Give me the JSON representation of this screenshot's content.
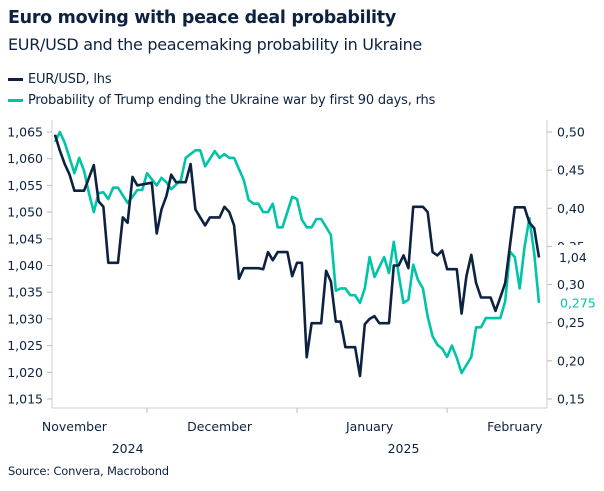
{
  "header": {
    "title": "Euro moving with peace deal probability",
    "subtitle": "EUR/USD and the peacemaking probability in Ukraine"
  },
  "legend": [
    {
      "label": "EUR/USD, lhs",
      "color": "#0d2240"
    },
    {
      "label": "Probability of Trump ending the Ukraine war by first 90 days, rhs",
      "color": "#00c4a7"
    }
  ],
  "source": "Source: Convera, Macrobond",
  "chart_data": {
    "type": "line",
    "title": "Euro moving with peace deal probability",
    "subtitle": "EUR/USD and the peacemaking probability in Ukraine",
    "grid": false,
    "legend_placement": "top-left",
    "x_ticks": [
      {
        "label": "November",
        "date": "2024-11-16"
      },
      {
        "label": "December",
        "date": "2024-12-16"
      },
      {
        "label": "January",
        "date": "2025-01-16"
      },
      {
        "label": "February",
        "date": "2025-02-15"
      }
    ],
    "year_labels": [
      {
        "label": "2024",
        "date": "2024-12-01"
      },
      {
        "label": "2025",
        "date": "2025-02-01"
      }
    ],
    "y_left": {
      "ylim": [
        1.013,
        1.067
      ],
      "ticks": [
        "1,015",
        "1,020",
        "1,025",
        "1,030",
        "1,035",
        "1,040",
        "1,045",
        "1,050",
        "1,055",
        "1,060",
        "1,065"
      ],
      "tick_values": [
        1.015,
        1.02,
        1.025,
        1.03,
        1.035,
        1.04,
        1.045,
        1.05,
        1.055,
        1.06,
        1.065
      ]
    },
    "y_right": {
      "ylim": [
        0.14,
        0.51
      ],
      "ticks": [
        "0,15",
        "0,20",
        "0,25",
        "0,30",
        "0,35",
        "0,40",
        "0,45",
        "0,50"
      ],
      "tick_values": [
        0.15,
        0.2,
        0.25,
        0.3,
        0.35,
        0.4,
        0.45,
        0.5
      ]
    },
    "series": [
      {
        "name": "EUR/USD, lhs",
        "axis": "left",
        "color": "#0d2240",
        "last_label": "1,04",
        "points": [
          [
            "2024-11-12",
            1.0645
          ],
          [
            "2024-11-13",
            1.0615
          ],
          [
            "2024-11-14",
            1.059
          ],
          [
            "2024-11-15",
            1.057
          ],
          [
            "2024-11-16",
            1.054
          ],
          [
            "2024-11-18",
            1.054
          ],
          [
            "2024-11-20",
            1.0588
          ],
          [
            "2024-11-21",
            1.052
          ],
          [
            "2024-11-22",
            1.051
          ],
          [
            "2024-11-23",
            1.0405
          ],
          [
            "2024-11-25",
            1.0405
          ],
          [
            "2024-11-26",
            1.049
          ],
          [
            "2024-11-27",
            1.048
          ],
          [
            "2024-11-28",
            1.0566
          ],
          [
            "2024-11-29",
            1.055
          ],
          [
            "2024-12-02",
            1.0555
          ],
          [
            "2024-12-03",
            1.046
          ],
          [
            "2024-12-04",
            1.0505
          ],
          [
            "2024-12-05",
            1.053
          ],
          [
            "2024-12-06",
            1.057
          ],
          [
            "2024-12-07",
            1.0556
          ],
          [
            "2024-12-09",
            1.0556
          ],
          [
            "2024-12-10",
            1.059
          ],
          [
            "2024-12-11",
            1.0505
          ],
          [
            "2024-12-13",
            1.0475
          ],
          [
            "2024-12-14",
            1.049
          ],
          [
            "2024-12-16",
            1.049
          ],
          [
            "2024-12-17",
            1.051
          ],
          [
            "2024-12-18",
            1.05
          ],
          [
            "2024-12-19",
            1.0475
          ],
          [
            "2024-12-20",
            1.0375
          ],
          [
            "2024-12-21",
            1.0395
          ],
          [
            "2024-12-24",
            1.0395
          ],
          [
            "2024-12-25",
            1.0393
          ],
          [
            "2024-12-26",
            1.0425
          ],
          [
            "2024-12-27",
            1.041
          ],
          [
            "2024-12-28",
            1.0425
          ],
          [
            "2024-12-30",
            1.0425
          ],
          [
            "2024-12-31",
            1.038
          ],
          [
            "2025-01-01",
            1.0405
          ],
          [
            "2025-01-02",
            1.0405
          ],
          [
            "2025-01-03",
            1.0228
          ],
          [
            "2025-01-04",
            1.0292
          ],
          [
            "2025-01-06",
            1.0292
          ],
          [
            "2025-01-07",
            1.039
          ],
          [
            "2025-01-08",
            1.037
          ],
          [
            "2025-01-09",
            1.0295
          ],
          [
            "2025-01-10",
            1.0295
          ],
          [
            "2025-01-11",
            1.0247
          ],
          [
            "2025-01-13",
            1.0247
          ],
          [
            "2025-01-14",
            1.0193
          ],
          [
            "2025-01-15",
            1.029
          ],
          [
            "2025-01-16",
            1.03
          ],
          [
            "2025-01-17",
            1.0305
          ],
          [
            "2025-01-18",
            1.0292
          ],
          [
            "2025-01-20",
            1.0292
          ],
          [
            "2025-01-21",
            1.04
          ],
          [
            "2025-01-22",
            1.04
          ],
          [
            "2025-01-23",
            1.0419
          ],
          [
            "2025-01-24",
            1.0395
          ],
          [
            "2025-01-25",
            1.051
          ],
          [
            "2025-01-27",
            1.051
          ],
          [
            "2025-01-28",
            1.05
          ],
          [
            "2025-01-29",
            1.0425
          ],
          [
            "2025-01-30",
            1.0419
          ],
          [
            "2025-01-31",
            1.0428
          ],
          [
            "2025-02-01",
            1.0393
          ],
          [
            "2025-02-03",
            1.0393
          ],
          [
            "2025-02-04",
            1.031
          ],
          [
            "2025-02-05",
            1.038
          ],
          [
            "2025-02-06",
            1.042
          ],
          [
            "2025-02-07",
            1.0367
          ],
          [
            "2025-02-08",
            1.034
          ],
          [
            "2025-02-10",
            1.034
          ],
          [
            "2025-02-11",
            1.0315
          ],
          [
            "2025-02-12",
            1.034
          ],
          [
            "2025-02-13",
            1.0367
          ],
          [
            "2025-02-15",
            1.0509
          ],
          [
            "2025-02-17",
            1.0509
          ],
          [
            "2025-02-18",
            1.048
          ],
          [
            "2025-02-19",
            1.047
          ],
          [
            "2025-02-20",
            1.0415
          ]
        ]
      },
      {
        "name": "Probability of Trump ending the Ukraine war by first 90 days, rhs",
        "axis": "right",
        "color": "#00c4a7",
        "last_label": "0,275",
        "points": [
          [
            "2024-11-12",
            0.487
          ],
          [
            "2024-11-13",
            0.5
          ],
          [
            "2024-11-14",
            0.486
          ],
          [
            "2024-11-16",
            0.446
          ],
          [
            "2024-11-17",
            0.466
          ],
          [
            "2024-11-18",
            0.449
          ],
          [
            "2024-11-19",
            0.42
          ],
          [
            "2024-11-20",
            0.395
          ],
          [
            "2024-11-21",
            0.42
          ],
          [
            "2024-11-22",
            0.421
          ],
          [
            "2024-11-23",
            0.412
          ],
          [
            "2024-11-24",
            0.427
          ],
          [
            "2024-11-25",
            0.427
          ],
          [
            "2024-11-27",
            0.407
          ],
          [
            "2024-11-28",
            0.415
          ],
          [
            "2024-11-29",
            0.424
          ],
          [
            "2024-11-30",
            0.424
          ],
          [
            "2024-12-01",
            0.446
          ],
          [
            "2024-12-03",
            0.43
          ],
          [
            "2024-12-04",
            0.44
          ],
          [
            "2024-12-05",
            0.434
          ],
          [
            "2024-12-06",
            0.425
          ],
          [
            "2024-12-08",
            0.437
          ],
          [
            "2024-12-09",
            0.466
          ],
          [
            "2024-12-11",
            0.476
          ],
          [
            "2024-12-12",
            0.476
          ],
          [
            "2024-12-13",
            0.455
          ],
          [
            "2024-12-15",
            0.475
          ],
          [
            "2024-12-16",
            0.466
          ],
          [
            "2024-12-17",
            0.471
          ],
          [
            "2024-12-18",
            0.466
          ],
          [
            "2024-12-19",
            0.466
          ],
          [
            "2024-12-21",
            0.437
          ],
          [
            "2024-12-22",
            0.411
          ],
          [
            "2024-12-23",
            0.406
          ],
          [
            "2024-12-24",
            0.406
          ],
          [
            "2024-12-25",
            0.395
          ],
          [
            "2024-12-26",
            0.395
          ],
          [
            "2024-12-27",
            0.406
          ],
          [
            "2024-12-28",
            0.375
          ],
          [
            "2024-12-29",
            0.375
          ],
          [
            "2024-12-31",
            0.415
          ],
          [
            "2025-01-01",
            0.412
          ],
          [
            "2025-01-02",
            0.385
          ],
          [
            "2025-01-03",
            0.375
          ],
          [
            "2025-01-04",
            0.375
          ],
          [
            "2025-01-05",
            0.386
          ],
          [
            "2025-01-06",
            0.386
          ],
          [
            "2025-01-08",
            0.365
          ],
          [
            "2025-01-09",
            0.292
          ],
          [
            "2025-01-10",
            0.295
          ],
          [
            "2025-01-11",
            0.295
          ],
          [
            "2025-01-12",
            0.286
          ],
          [
            "2025-01-13",
            0.286
          ],
          [
            "2025-01-14",
            0.276
          ],
          [
            "2025-01-15",
            0.295
          ],
          [
            "2025-01-16",
            0.336
          ],
          [
            "2025-01-17",
            0.31
          ],
          [
            "2025-01-18",
            0.323
          ],
          [
            "2025-01-19",
            0.336
          ],
          [
            "2025-01-20",
            0.315
          ],
          [
            "2025-01-21",
            0.356
          ],
          [
            "2025-01-22",
            0.313
          ],
          [
            "2025-01-23",
            0.276
          ],
          [
            "2025-01-24",
            0.28
          ],
          [
            "2025-01-25",
            0.326
          ],
          [
            "2025-01-26",
            0.306
          ],
          [
            "2025-01-27",
            0.295
          ],
          [
            "2025-01-28",
            0.258
          ],
          [
            "2025-01-29",
            0.232
          ],
          [
            "2025-01-30",
            0.221
          ],
          [
            "2025-01-31",
            0.216
          ],
          [
            "2025-02-01",
            0.205
          ],
          [
            "2025-02-02",
            0.22
          ],
          [
            "2025-02-03",
            0.204
          ],
          [
            "2025-02-04",
            0.184
          ],
          [
            "2025-02-06",
            0.205
          ],
          [
            "2025-02-07",
            0.244
          ],
          [
            "2025-02-08",
            0.244
          ],
          [
            "2025-02-09",
            0.256
          ],
          [
            "2025-02-12",
            0.256
          ],
          [
            "2025-02-13",
            0.278
          ],
          [
            "2025-02-14",
            0.343
          ],
          [
            "2025-02-15",
            0.336
          ],
          [
            "2025-02-16",
            0.295
          ],
          [
            "2025-02-17",
            0.349
          ],
          [
            "2025-02-18",
            0.387
          ],
          [
            "2025-02-19",
            0.341
          ],
          [
            "2025-02-20",
            0.276
          ]
        ]
      }
    ]
  }
}
